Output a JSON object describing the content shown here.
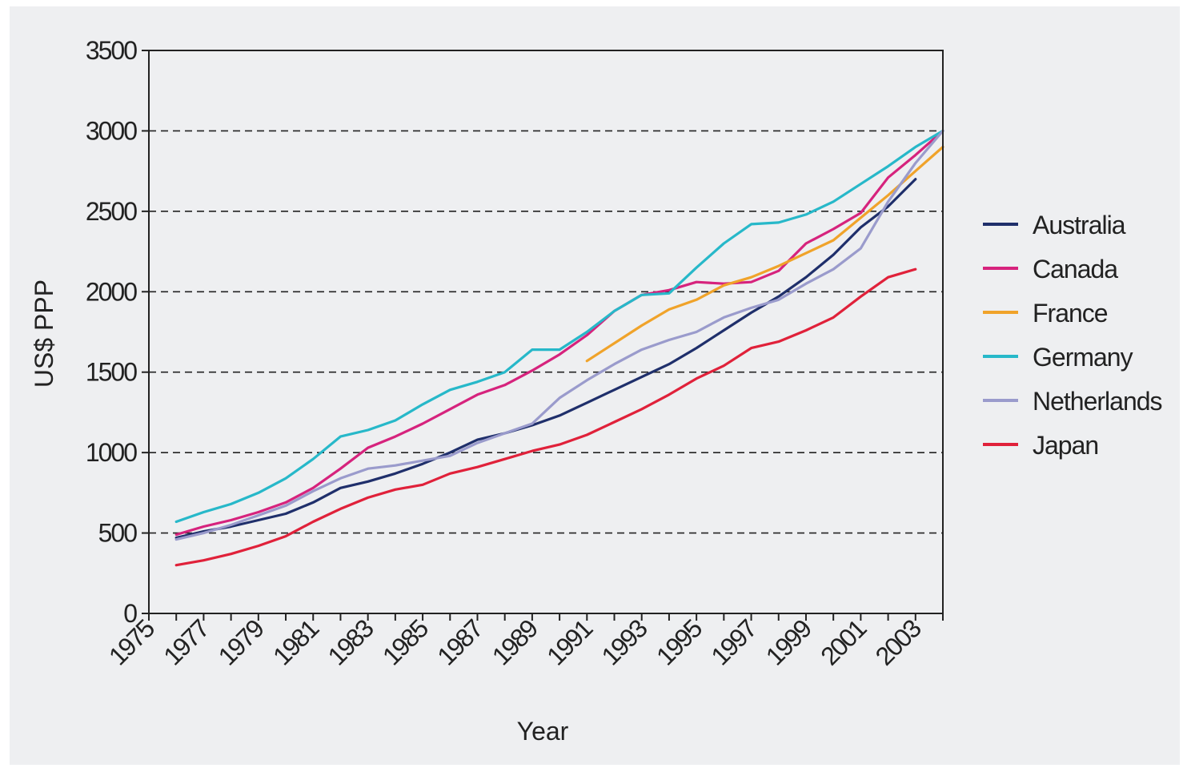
{
  "chart_data": {
    "type": "line",
    "xlabel": "Year",
    "ylabel": "US$ PPP",
    "xlim": [
      1975,
      2004
    ],
    "ylim": [
      0,
      3500
    ],
    "y_ticks": [
      0,
      500,
      1000,
      1500,
      2000,
      2500,
      3000,
      3500
    ],
    "x_ticks": [
      1975,
      1976,
      1977,
      1978,
      1979,
      1980,
      1981,
      1982,
      1983,
      1984,
      1985,
      1986,
      1987,
      1988,
      1989,
      1990,
      1991,
      1992,
      1993,
      1994,
      1995,
      1996,
      1997,
      1998,
      1999,
      2000,
      2001,
      2002,
      2003,
      2004
    ],
    "x_tick_labels": [
      1975,
      1977,
      1979,
      1981,
      1983,
      1985,
      1987,
      1989,
      1991,
      1993,
      1995,
      1997,
      1999,
      2001,
      2003
    ],
    "grid": "horizontal dashed",
    "legend": "right",
    "series": [
      {
        "name": "Australia",
        "color": "#1f2f6b",
        "x": [
          1976,
          1977,
          1978,
          1979,
          1980,
          1981,
          1982,
          1983,
          1984,
          1985,
          1986,
          1987,
          1988,
          1989,
          1990,
          1991,
          1992,
          1993,
          1994,
          1995,
          1996,
          1997,
          1998,
          1999,
          2000,
          2001,
          2002,
          2003
        ],
        "values": [
          470,
          510,
          540,
          580,
          620,
          690,
          780,
          820,
          870,
          930,
          1000,
          1080,
          1120,
          1170,
          1230,
          1310,
          1390,
          1470,
          1550,
          1650,
          1760,
          1870,
          1970,
          2090,
          2230,
          2400,
          2530,
          2700
        ]
      },
      {
        "name": "Canada",
        "color": "#d6237d",
        "x": [
          1976,
          1977,
          1978,
          1979,
          1980,
          1981,
          1982,
          1983,
          1984,
          1985,
          1986,
          1987,
          1988,
          1989,
          1990,
          1991,
          1992,
          1993,
          1994,
          1995,
          1996,
          1997,
          1998,
          1999,
          2000,
          2001,
          2002,
          2003,
          2004
        ],
        "values": [
          490,
          540,
          580,
          630,
          690,
          780,
          900,
          1030,
          1100,
          1180,
          1270,
          1360,
          1420,
          1510,
          1610,
          1730,
          1880,
          1980,
          2010,
          2060,
          2050,
          2060,
          2130,
          2300,
          2390,
          2490,
          2710,
          2850,
          3000
        ]
      },
      {
        "name": "France",
        "color": "#f0a32a",
        "x": [
          1991,
          1992,
          1993,
          1994,
          1995,
          1996,
          1997,
          1998,
          1999,
          2000,
          2001,
          2002,
          2003,
          2004
        ],
        "values": [
          1570,
          1680,
          1790,
          1890,
          1950,
          2040,
          2090,
          2160,
          2240,
          2320,
          2460,
          2600,
          2750,
          2900
        ]
      },
      {
        "name": "Germany",
        "color": "#27b8c9",
        "x": [
          1976,
          1977,
          1978,
          1979,
          1980,
          1981,
          1982,
          1983,
          1984,
          1985,
          1986,
          1987,
          1988,
          1989,
          1990,
          1991,
          1992,
          1993,
          1994,
          1995,
          1996,
          1997,
          1998,
          1999,
          2000,
          2001,
          2002,
          2003,
          2004
        ],
        "values": [
          570,
          630,
          680,
          750,
          840,
          960,
          1100,
          1140,
          1200,
          1300,
          1390,
          1440,
          1500,
          1640,
          1640,
          1750,
          1880,
          1980,
          1990,
          2150,
          2300,
          2420,
          2430,
          2480,
          2560,
          2670,
          2780,
          2900,
          3000
        ]
      },
      {
        "name": "Netherlands",
        "color": "#9a9bcc",
        "x": [
          1976,
          1977,
          1978,
          1979,
          1980,
          1981,
          1982,
          1983,
          1984,
          1985,
          1986,
          1987,
          1988,
          1989,
          1990,
          1991,
          1992,
          1993,
          1994,
          1995,
          1996,
          1997,
          1998,
          1999,
          2000,
          2001,
          2002,
          2003,
          2004
        ],
        "values": [
          460,
          500,
          550,
          610,
          670,
          760,
          840,
          900,
          920,
          950,
          980,
          1060,
          1120,
          1180,
          1340,
          1450,
          1550,
          1640,
          1700,
          1750,
          1840,
          1900,
          1950,
          2050,
          2140,
          2270,
          2560,
          2800,
          3000
        ]
      },
      {
        "name": "Japan",
        "color": "#e0213a",
        "x": [
          1976,
          1977,
          1978,
          1979,
          1980,
          1981,
          1982,
          1983,
          1984,
          1985,
          1986,
          1987,
          1988,
          1989,
          1990,
          1991,
          1992,
          1993,
          1994,
          1995,
          1996,
          1997,
          1998,
          1999,
          2000,
          2001,
          2002,
          2003
        ],
        "values": [
          300,
          330,
          370,
          420,
          480,
          570,
          650,
          720,
          770,
          800,
          870,
          910,
          960,
          1010,
          1050,
          1110,
          1190,
          1270,
          1360,
          1460,
          1540,
          1650,
          1690,
          1760,
          1840,
          1970,
          2090,
          2140
        ]
      }
    ]
  }
}
